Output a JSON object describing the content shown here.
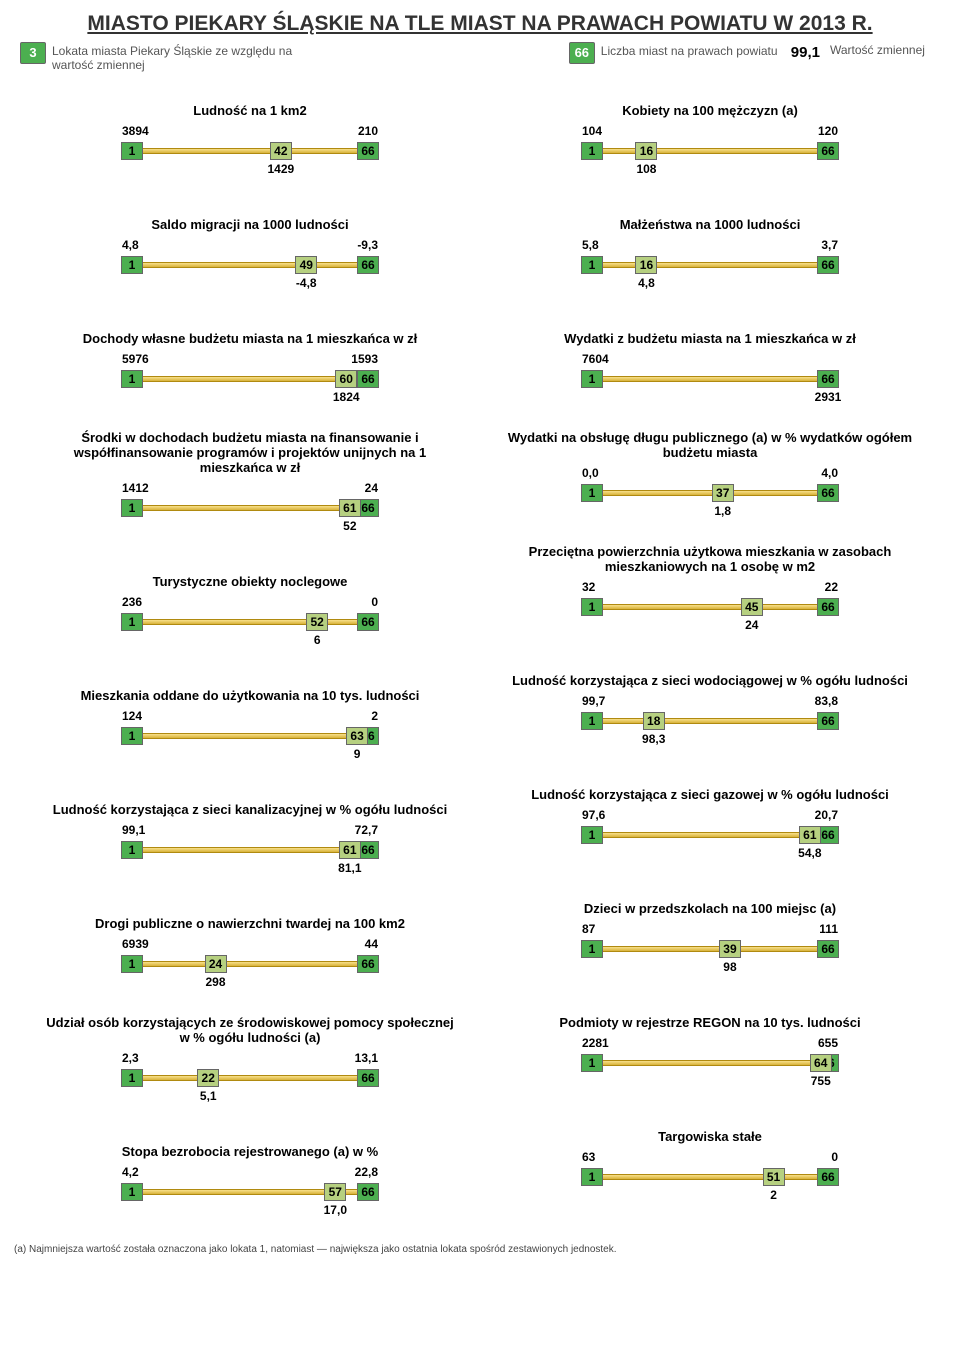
{
  "title": "MIASTO PIEKARY ŚLĄSKIE NA TLE MIAST NA PRAWACH POWIATU W 2013 R.",
  "legend": {
    "rank_badge": "3",
    "rank_desc": "Lokata miasta Piekary Śląskie ze względu na wartość zmiennej",
    "count_badge": "66",
    "count_desc": "Liczba miast na prawach powiatu",
    "city_value": "99,1",
    "city_value_desc": "Wartość zmiennej"
  },
  "colors": {
    "box_green": "#4caf50",
    "box_rank": "#b6d080",
    "track_from": "#f8e08a",
    "track_to": "#d8b23a"
  },
  "total": 66,
  "indicators": {
    "left": [
      {
        "title": "Ludność na 1 km2",
        "v1": "3894",
        "vN": "210",
        "rank": 42,
        "vCity": "1429",
        "short": true
      },
      {
        "title": "Saldo migracji na 1000 ludności",
        "v1": "4,8",
        "vN": "-9,3",
        "rank": 49,
        "vCity": "-4,8"
      },
      {
        "title": "Dochody własne budżetu miasta na 1 mieszkańca w zł",
        "v1": "5976",
        "vN": "1593",
        "rank": 60,
        "vCity": "1824"
      },
      {
        "title": "Środki w dochodach budżetu miasta na finansowanie i współfinansowanie programów i projektów unijnych na 1 mieszkańca w zł",
        "v1": "1412",
        "vN": "24",
        "rank": 61,
        "vCity": "52"
      },
      {
        "title": "Turystyczne obiekty noclegowe",
        "v1": "236",
        "vN": "0",
        "rank": 52,
        "vCity": "6"
      },
      {
        "title": "Mieszkania oddane do użytkowania na 10 tys. ludności",
        "v1": "124",
        "vN": "2",
        "rank": 63,
        "vCity": "9"
      },
      {
        "title": "Ludność korzystająca z sieci kanalizacyjnej w % ogółu ludności",
        "v1": "99,1",
        "vN": "72,7",
        "rank": 61,
        "vCity": "81,1"
      },
      {
        "title": "Drogi publiczne o nawierzchni twardej na 100 km2",
        "v1": "6939",
        "vN": "44",
        "rank": 24,
        "vCity": "298"
      },
      {
        "title": "Udział osób korzystających ze środowiskowej pomocy społecznej w % ogółu ludności (a)",
        "v1": "2,3",
        "vN": "13,1",
        "rank": 22,
        "vCity": "5,1"
      },
      {
        "title": "Stopa bezrobocia rejestrowanego (a) w %",
        "v1": "4,2",
        "vN": "22,8",
        "rank": 57,
        "vCity": "17,0"
      }
    ],
    "right": [
      {
        "title": "Kobiety na 100 mężczyzn (a)",
        "v1": "104",
        "vN": "120",
        "rank": 16,
        "vCity": "108",
        "short": true
      },
      {
        "title": "Małżeństwa na 1000 ludności",
        "v1": "5,8",
        "vN": "3,7",
        "rank": 16,
        "vCity": "4,8"
      },
      {
        "title": "Wydatki z budżetu miasta na 1 mieszkańca w zł",
        "v1": "7604",
        "vN": "",
        "rank": null,
        "vCity": "2931",
        "rank_hidden": true
      },
      {
        "title": "Wydatki na obsługę długu publicznego (a) w % wydatków ogółem budżetu miasta",
        "v1": "0,0",
        "vN": "4,0",
        "rank": 37,
        "vCity": "1,8"
      },
      {
        "title": "Przeciętna powierzchnia użytkowa mieszkania w zasobach mieszkaniowych na 1 osobę w m2",
        "v1": "32",
        "vN": "22",
        "rank": 45,
        "vCity": "24"
      },
      {
        "title": "Ludność korzystająca z sieci wodociągowej w % ogółu ludności",
        "v1": "99,7",
        "vN": "83,8",
        "rank": 18,
        "vCity": "98,3"
      },
      {
        "title": "Ludność korzystająca z sieci gazowej w % ogółu ludności",
        "v1": "97,6",
        "vN": "20,7",
        "rank": 61,
        "vCity": "54,8"
      },
      {
        "title": "Dzieci w przedszkolach na 100 miejsc (a)",
        "v1": "87",
        "vN": "111",
        "rank": 39,
        "vCity": "98"
      },
      {
        "title": "Podmioty w rejestrze REGON na 10 tys. ludności",
        "v1": "2281",
        "vN": "655",
        "rank": 64,
        "vCity": "755"
      },
      {
        "title": "Targowiska stałe",
        "v1": "63",
        "vN": "0",
        "rank": 51,
        "vCity": "2"
      }
    ]
  },
  "footnote": "(a) Najmniejsza wartość została oznaczona jako lokata 1, natomiast — największa jako ostatnia lokata spośród zestawionych jednostek."
}
